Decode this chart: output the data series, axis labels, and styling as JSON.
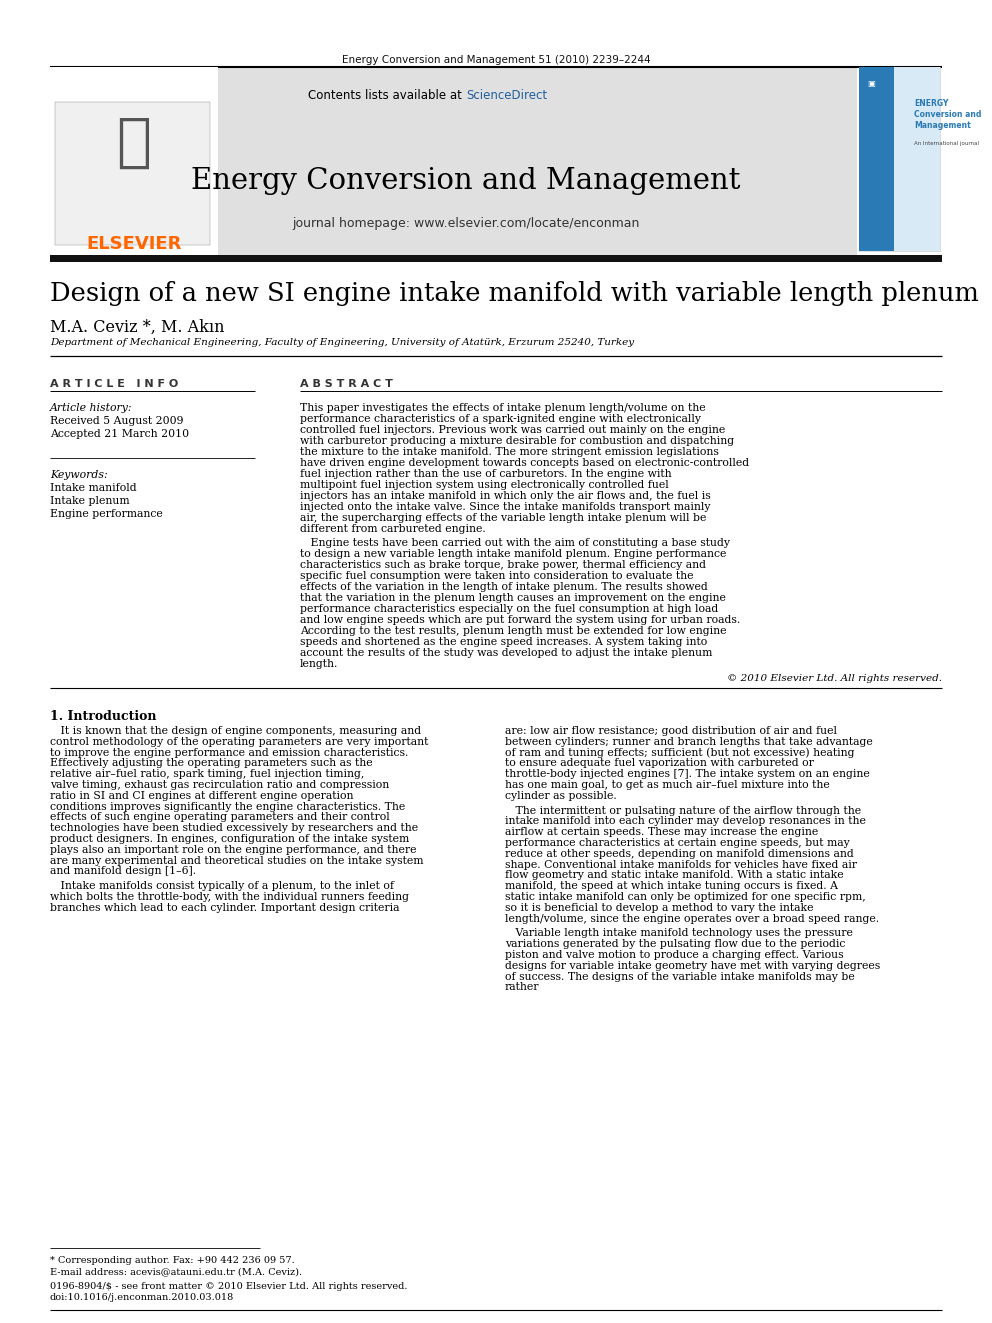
{
  "journal_citation": "Energy Conversion and Management 51 (2010) 2239–2244",
  "journal_name": "Energy Conversion and Management",
  "journal_homepage": "journal homepage: www.elsevier.com/locate/enconman",
  "contents_line1": "Contents lists available at ",
  "contents_sciencedirect": "ScienceDirect",
  "paper_title": "Design of a new SI engine intake manifold with variable length plenum",
  "authors": "M.A. Ceviz *, M. Akın",
  "affiliation": "Department of Mechanical Engineering, Faculty of Engineering, University of Atatürk, Erzurum 25240, Turkey",
  "article_info_header": "A R T I C L E   I N F O",
  "abstract_header": "A B S T R A C T",
  "article_history_label": "Article history:",
  "received": "Received 5 August 2009",
  "accepted": "Accepted 21 March 2010",
  "keywords_label": "Keywords:",
  "keywords": [
    "Intake manifold",
    "Intake plenum",
    "Engine performance"
  ],
  "abstract_p1": "This paper investigates the effects of intake plenum length/volume on the performance characteristics of a spark-ignited engine with electronically controlled fuel injectors. Previous work was carried out mainly on the engine with carburetor producing a mixture desirable for combustion and dispatching the mixture to the intake manifold. The more stringent emission legislations have driven engine development towards concepts based on electronic-controlled fuel injection rather than the use of carburetors. In the engine with multipoint fuel injection system using electronically controlled fuel injectors has an intake manifold in which only the air flows and, the fuel is injected onto the intake valve. Since the intake manifolds transport mainly air, the supercharging effects of the variable length intake plenum will be different from carbureted engine.",
  "abstract_p2": "Engine tests have been carried out with the aim of constituting a base study to design a new variable length intake manifold plenum. Engine performance characteristics such as brake torque, brake power, thermal efficiency and specific fuel consumption were taken into consideration to evaluate the effects of the variation in the length of intake plenum. The results showed that the variation in the plenum length causes an improvement on the engine performance characteristics especially on the fuel consumption at high load and low engine speeds which are put forward the system using for urban roads. According to the test results, plenum length must be extended for low engine speeds and shortened as the engine speed increases. A system taking into account the results of the study was developed to adjust the intake plenum length.",
  "copyright": "© 2010 Elsevier Ltd. All rights reserved.",
  "section1_header": "1. Introduction",
  "intro_p1": "It is known that the design of engine components, measuring and control methodology of the operating parameters are very important to improve the engine performance and emission characteristics. Effectively adjusting the operating parameters such as the relative air–fuel ratio, spark timing, fuel injection timing, valve timing, exhaust gas recirculation ratio and compression ratio in SI and CI engines at different engine operation conditions improves significantly the engine characteristics. The effects of such engine operating parameters and their control technologies have been studied excessively by researchers and the product designers. In engines, configuration of the intake system plays also an important role on the engine performance, and there are many experimental and theoretical studies on the intake system and manifold design [1–6].",
  "intro_p2": "Intake manifolds consist typically of a plenum, to the inlet of which bolts the throttle-body, with the individual runners feeding branches which lead to each cylinder. Important design criteria",
  "right_p1": "are: low air flow resistance; good distribution of air and fuel between cylinders; runner and branch lengths that take advantage of ram and tuning effects; sufficient (but not excessive) heating to ensure adequate fuel vaporization with carbureted or throttle-body injected engines [7]. The intake system on an engine has one main goal, to get as much air–fuel mixture into the cylinder as possible.",
  "right_p2": "The intermittent or pulsating nature of the airflow through the intake manifold into each cylinder may develop resonances in the airflow at certain speeds. These may increase the engine performance characteristics at certain engine speeds, but may reduce at other speeds, depending on manifold dimensions and shape. Conventional intake manifolds for vehicles have fixed air flow geometry and static intake manifold. With a static intake manifold, the speed at which intake tuning occurs is fixed. A static intake manifold can only be optimized for one specific rpm, so it is beneficial to develop a method to vary the intake length/volume, since the engine operates over a broad speed range.",
  "right_p3": "Variable length intake manifold technology uses the pressure variations generated by the pulsating flow due to the periodic piston and valve motion to produce a charging effect. Various designs for variable intake geometry have met with varying degrees of success. The designs of the variable intake manifolds may be rather",
  "footnote1": "* Corresponding author. Fax: +90 442 236 09 57.",
  "footnote2": "E-mail address: acevis@atauni.edu.tr (M.A. Ceviz).",
  "footnote3": "0196-8904/$ - see front matter © 2010 Elsevier Ltd. All rights reserved.",
  "footnote4": "doi:10.1016/j.enconman.2010.03.018",
  "elsevier_color": "#FF6600",
  "sciencedirect_color": "#1F5F9E",
  "header_bg": "#E0E0E0",
  "dark_bar_color": "#111111",
  "cover_blue": "#2a7ab5",
  "cover_light": "#a8cce0"
}
